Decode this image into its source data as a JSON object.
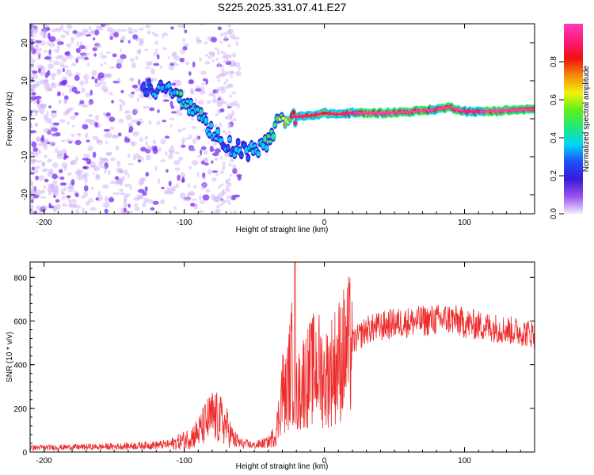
{
  "title": "S225.2025.331.07.41.E27",
  "chart_data": [
    {
      "type": "heatmap",
      "name": "spectrogram",
      "xlabel": "Height of straight line (km)",
      "ylabel": "Frequency (Hz)",
      "xlim": [
        -210,
        150
      ],
      "ylim": [
        -25,
        25
      ],
      "xticks": [
        -200,
        -100,
        0,
        100
      ],
      "yticks": [
        -20,
        -10,
        0,
        10,
        20
      ],
      "ridge": {
        "x": [
          -130,
          -120,
          -110,
          -100,
          -90,
          -80,
          -70,
          -60,
          -50,
          -45,
          -40,
          -35,
          -30,
          -25,
          -20,
          -10,
          0,
          10,
          20,
          40,
          60,
          80,
          90,
          100,
          110,
          130,
          150
        ],
        "freq": [
          9,
          8,
          7,
          5,
          1,
          -4,
          -7,
          -8,
          -9,
          -8,
          -5,
          -2,
          0,
          0.5,
          0.5,
          0.8,
          1.5,
          1.2,
          1.5,
          1.5,
          1.8,
          2.5,
          3,
          2,
          1.8,
          2.2,
          2.5
        ],
        "amplitude": [
          0.3,
          0.35,
          0.4,
          0.45,
          0.45,
          0.4,
          0.35,
          0.35,
          0.35,
          0.4,
          0.45,
          0.55,
          0.65,
          0.85,
          0.9,
          0.9,
          0.8,
          0.85,
          0.9,
          0.95,
          0.95,
          0.9,
          0.95,
          0.9,
          0.9,
          0.95,
          0.95
        ]
      }
    },
    {
      "type": "line",
      "name": "snr",
      "xlabel": "Height of straight line (km)",
      "ylabel": "SNR (10 * v/v)",
      "xlim": [
        -210,
        150
      ],
      "ylim": [
        0,
        870
      ],
      "xticks": [
        -200,
        -100,
        0,
        100
      ],
      "yticks": [
        0,
        200,
        400,
        600,
        800
      ],
      "color": "#ee2c2c",
      "envelope": {
        "x": [
          -210,
          -150,
          -110,
          -100,
          -95,
          -90,
          -85,
          -80,
          -75,
          -70,
          -65,
          -60,
          -50,
          -40,
          -35,
          -33,
          -30,
          -28,
          -25,
          -23,
          -21,
          -20,
          -18,
          -15,
          -10,
          -5,
          0,
          10,
          20,
          30,
          50,
          70,
          90,
          100,
          110,
          130,
          150
        ],
        "y": [
          20,
          25,
          35,
          55,
          70,
          90,
          130,
          160,
          150,
          120,
          60,
          40,
          30,
          45,
          80,
          140,
          300,
          250,
          350,
          420,
          300,
          250,
          280,
          330,
          360,
          400,
          330,
          420,
          500,
          560,
          590,
          600,
          610,
          590,
          580,
          560,
          540
        ]
      },
      "spike": {
        "x": -21,
        "y": 870
      }
    }
  ],
  "colorbar": {
    "label": "Normalized spectral amplitude",
    "range": [
      0,
      1
    ],
    "ticks": [
      "0.0",
      "0.2",
      "0.4",
      "0.6",
      "0.8"
    ],
    "colors": [
      "#f2ecfb",
      "#9c4ff0",
      "#3a1ad8",
      "#1f4ff5",
      "#00d6f5",
      "#21e87a",
      "#5cf01a",
      "#f2f20a",
      "#f58a0a",
      "#ee1010",
      "#ff1a7a",
      "#ff3bb4"
    ]
  }
}
